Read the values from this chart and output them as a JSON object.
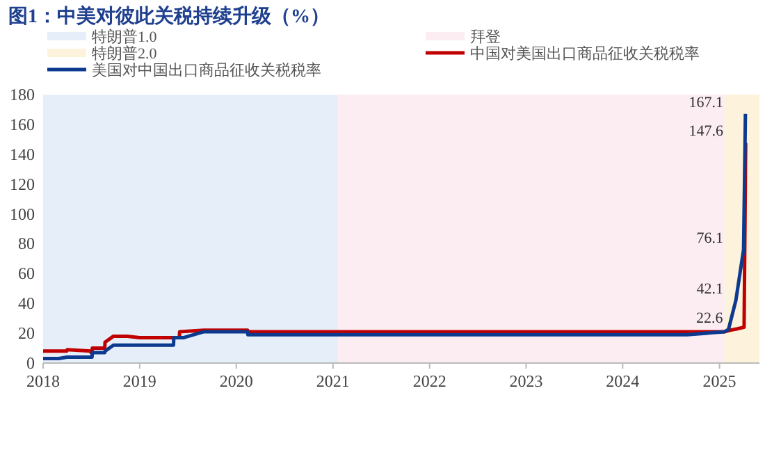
{
  "chart_data": {
    "type": "line",
    "title": "图1：中美对彼此关税持续升级（%）",
    "xlim": [
      "2018-01-01",
      "2025-06-01"
    ],
    "xticks": [
      {
        "value": "2018-01-01",
        "label": "2018"
      },
      {
        "value": "2019-01-01",
        "label": "2019"
      },
      {
        "value": "2020-01-01",
        "label": "2020"
      },
      {
        "value": "2021-01-01",
        "label": "2021"
      },
      {
        "value": "2022-01-01",
        "label": "2022"
      },
      {
        "value": "2023-01-01",
        "label": "2023"
      },
      {
        "value": "2024-01-01",
        "label": "2024"
      },
      {
        "value": "2025-01-01",
        "label": "2025"
      }
    ],
    "ylim": [
      0,
      180
    ],
    "yticks": [
      0,
      20,
      40,
      60,
      80,
      100,
      120,
      140,
      160,
      180
    ],
    "grid": false,
    "legend": "top",
    "bands": [
      {
        "axis": "x",
        "from": "2018-01-01",
        "to": "2021-01-20",
        "label": "特朗普1.0",
        "color": "#e6eef9"
      },
      {
        "axis": "x",
        "from": "2021-01-20",
        "to": "2025-01-20",
        "label": "拜登",
        "color": "#fcedf3"
      },
      {
        "axis": "x",
        "from": "2025-01-20",
        "to": "2025-06-01",
        "label": "特朗普2.0",
        "color": "#fdf3dc"
      }
    ],
    "series": [
      {
        "name": "中国对美国出口商品征收关税税率",
        "color": "#c00000",
        "x": [
          "2018-01-01",
          "2018-03-31",
          "2018-04-02",
          "2018-06-30",
          "2018-07-01",
          "2018-07-05",
          "2018-07-06",
          "2018-08-22",
          "2018-08-23",
          "2018-09-24",
          "2018-11-15",
          "2019-01-01",
          "2019-05-31",
          "2019-06-01",
          "2019-09-01",
          "2020-02-13",
          "2020-02-14",
          "2025-01-20",
          "2025-02-10",
          "2025-03-10",
          "2025-04-04",
          "2025-04-10"
        ],
        "values": [
          8,
          8,
          9,
          8,
          7,
          7,
          10,
          10,
          14,
          18,
          18,
          17,
          17,
          21,
          22,
          22,
          21,
          21,
          22,
          23,
          24,
          147.6
        ],
        "value_labels": [
          null,
          null,
          null,
          null,
          null,
          null,
          null,
          null,
          null,
          null,
          null,
          null,
          null,
          null,
          null,
          null,
          null,
          null,
          null,
          null,
          null,
          "147.6"
        ]
      },
      {
        "name": "美国对中国出口商品征收关税税率",
        "color": "#0b3a8f",
        "x": [
          "2018-01-01",
          "2018-03-01",
          "2018-04-01",
          "2018-07-05",
          "2018-07-06",
          "2018-08-22",
          "2018-08-23",
          "2018-09-24",
          "2019-05-09",
          "2019-05-10",
          "2019-06-15",
          "2019-09-01",
          "2020-02-13",
          "2020-02-14",
          "2024-09-01",
          "2025-01-20",
          "2025-02-04",
          "2025-03-04",
          "2025-04-02",
          "2025-04-09"
        ],
        "values": [
          3,
          3,
          4,
          4,
          7,
          7,
          8,
          12,
          12,
          17,
          17,
          21,
          21,
          19,
          19,
          21,
          22.6,
          42.1,
          76.1,
          167.1
        ],
        "value_labels": [
          null,
          null,
          null,
          null,
          null,
          null,
          null,
          null,
          null,
          null,
          null,
          null,
          null,
          null,
          null,
          null,
          "22.6",
          "42.1",
          "76.1",
          "167.1"
        ]
      }
    ]
  }
}
